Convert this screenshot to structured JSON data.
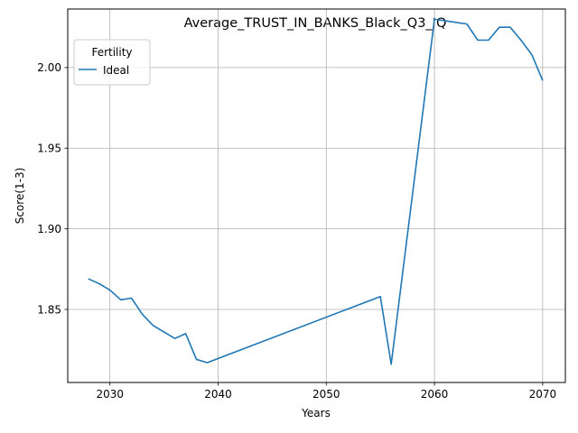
{
  "chart_data": {
    "type": "line",
    "title": "Average_TRUST_IN_BANKS_Black_Q3_IQ",
    "xlabel": "Years",
    "ylabel": "Score(1-3)",
    "xlim": [
      2026.1,
      2072.1
    ],
    "ylim": [
      1.8047,
      2.0363
    ],
    "x_ticks": [
      2030,
      2040,
      2050,
      2060,
      2070
    ],
    "y_ticks": [
      1.85,
      1.9,
      1.95,
      2.0
    ],
    "x_tick_labels": [
      "2030",
      "2040",
      "2050",
      "2060",
      "2070"
    ],
    "y_tick_labels": [
      "1.85",
      "1.90",
      "1.95",
      "2.00"
    ],
    "grid": true,
    "legend": {
      "title": "Fertility",
      "placement": "top-left"
    },
    "series": [
      {
        "name": "Ideal",
        "color": "#1f77b4",
        "x": [
          2028,
          2029,
          2030,
          2031,
          2032,
          2033,
          2034,
          2035,
          2036,
          2037,
          2038,
          2039,
          2055,
          2056,
          2060,
          2061,
          2063,
          2064,
          2065,
          2066,
          2067,
          2068,
          2069,
          2070
        ],
        "y": [
          1.869,
          1.866,
          1.862,
          1.856,
          1.857,
          1.847,
          1.84,
          1.836,
          1.832,
          1.835,
          1.819,
          1.817,
          1.858,
          1.816,
          2.03,
          2.029,
          2.027,
          2.017,
          2.017,
          2.025,
          2.025,
          2.017,
          2.008,
          1.992
        ]
      }
    ]
  }
}
